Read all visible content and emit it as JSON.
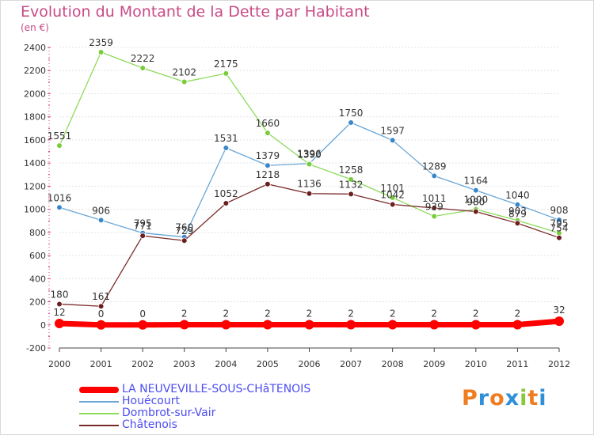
{
  "chart_data": {
    "type": "line",
    "title": "Evolution du Montant de la Dette par Habitant",
    "unit": "(en €)",
    "x": [
      "2000",
      "2001",
      "2002",
      "2003",
      "2004",
      "2005",
      "2006",
      "2007",
      "2008",
      "2009",
      "2010",
      "2011",
      "2012"
    ],
    "ylim": [
      -200,
      2400
    ],
    "yticks": [
      "-200",
      "0",
      "200",
      "400",
      "600",
      "800",
      "1000",
      "1200",
      "1400",
      "1600",
      "1800",
      "2000",
      "2200",
      "2400"
    ],
    "grid": "horizontal",
    "legend_position": "bottom-left",
    "series": [
      {
        "name": "LA NEUVEVILLE-SOUS-CHâTENOIS",
        "color": "#ff0000",
        "marker": "#ff0000",
        "values": [
          12,
          0,
          0,
          2,
          2,
          2,
          2,
          2,
          2,
          2,
          2,
          2,
          32
        ],
        "labels": [
          "12",
          "0",
          "0",
          "2",
          "2",
          "2",
          "2",
          "2",
          "2",
          "2",
          "2",
          "2",
          "32"
        ]
      },
      {
        "name": "Houécourt",
        "color": "#6aa6d6",
        "marker": "#3a87c8",
        "values": [
          1016,
          906,
          795,
          760,
          1531,
          1379,
          1396,
          1750,
          1597,
          1289,
          1164,
          1040,
          908
        ],
        "labels": [
          "1016",
          "906",
          "795",
          "760",
          "1531",
          "1379",
          "1396",
          "1750",
          "1597",
          "1289",
          "1164",
          "1040",
          "908"
        ]
      },
      {
        "name": "Dombrot-sur-Vair",
        "color": "#8edb5a",
        "marker": "#78cc3c",
        "values": [
          1551,
          2359,
          2222,
          2102,
          2175,
          1660,
          1390,
          1258,
          1101,
          939,
          1000,
          903,
          795
        ],
        "labels": [
          "1551",
          "2359",
          "2222",
          "2102",
          "2175",
          "1660",
          "1390",
          "1258",
          "1101",
          "939",
          "1000",
          "903",
          "795"
        ]
      },
      {
        "name": "Châtenois",
        "color": "#7b2a2a",
        "marker": "#6b1f1f",
        "values": [
          180,
          161,
          771,
          729,
          1052,
          1218,
          1136,
          1132,
          1042,
          1011,
          980,
          879,
          754
        ],
        "labels": [
          "180",
          "161",
          "771",
          "729",
          "1052",
          "1218",
          "1136",
          "1132",
          "1042",
          "1011",
          "980",
          "879",
          "754"
        ]
      }
    ]
  },
  "logo": {
    "letters": [
      "P",
      "r",
      "o",
      "x",
      "i",
      "t",
      "i"
    ],
    "colors": [
      "#ee7d21",
      "#2f8fd8",
      "#ee7d21",
      "#2f8fd8",
      "#8bc63f",
      "#ee7d21",
      "#2f8fd8"
    ]
  }
}
